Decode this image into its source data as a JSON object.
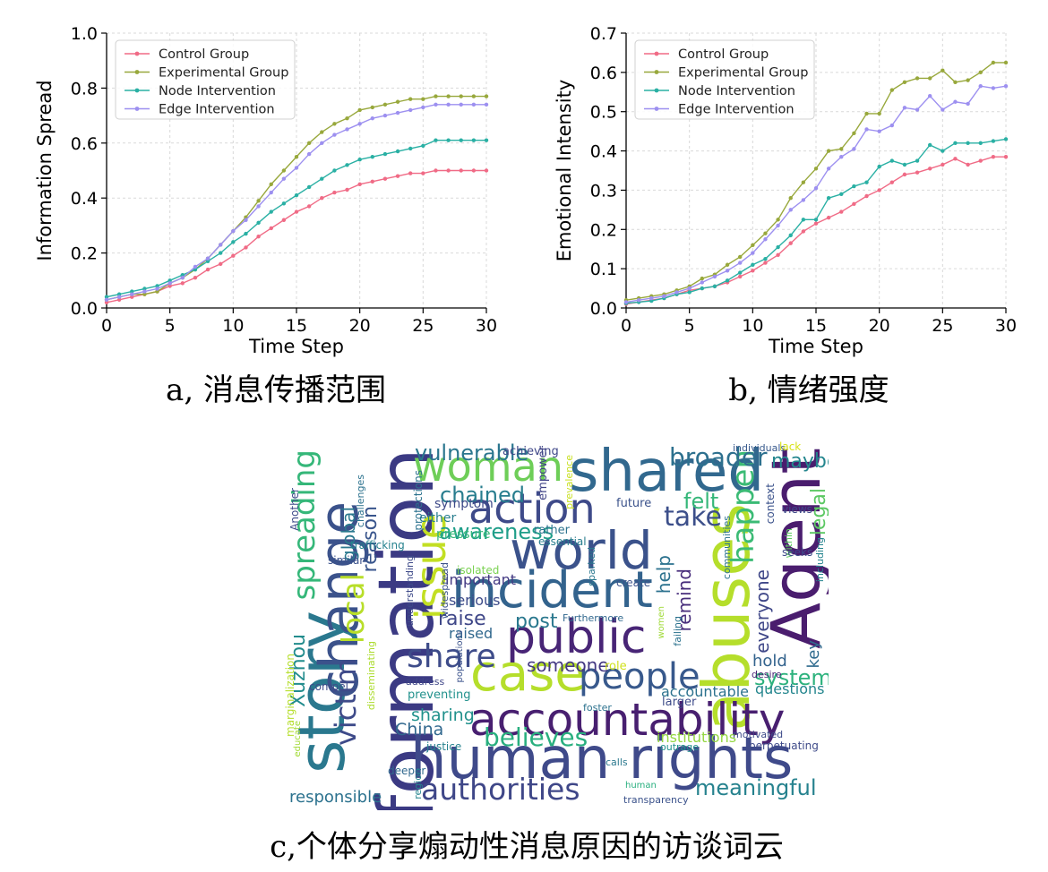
{
  "chart_data": [
    {
      "type": "line",
      "title": "",
      "xlabel": "Time Step",
      "ylabel": "Information Spread",
      "xlim": [
        0,
        30
      ],
      "ylim": [
        0.0,
        1.0
      ],
      "xticks": [
        "0",
        "5",
        "10",
        "15",
        "20",
        "25",
        "30"
      ],
      "yticks": [
        "0.0",
        "0.2",
        "0.4",
        "0.6",
        "0.8",
        "1.0"
      ],
      "grid": true,
      "legend_position": "top-left",
      "x": [
        0,
        1,
        2,
        3,
        4,
        5,
        6,
        7,
        8,
        9,
        10,
        11,
        12,
        13,
        14,
        15,
        16,
        17,
        18,
        19,
        20,
        21,
        22,
        23,
        24,
        25,
        26,
        27,
        28,
        29,
        30
      ],
      "series": [
        {
          "name": "Control Group",
          "color": "#f06b86",
          "values": [
            0.02,
            0.03,
            0.04,
            0.05,
            0.06,
            0.08,
            0.09,
            0.11,
            0.14,
            0.16,
            0.19,
            0.22,
            0.26,
            0.29,
            0.32,
            0.35,
            0.37,
            0.4,
            0.42,
            0.43,
            0.45,
            0.46,
            0.47,
            0.48,
            0.49,
            0.49,
            0.5,
            0.5,
            0.5,
            0.5,
            0.5
          ]
        },
        {
          "name": "Experimental Group",
          "color": "#98a83c",
          "values": [
            0.03,
            0.04,
            0.05,
            0.05,
            0.06,
            0.09,
            0.11,
            0.14,
            0.18,
            0.23,
            0.28,
            0.33,
            0.39,
            0.45,
            0.5,
            0.55,
            0.6,
            0.64,
            0.67,
            0.69,
            0.72,
            0.73,
            0.74,
            0.75,
            0.76,
            0.76,
            0.77,
            0.77,
            0.77,
            0.77,
            0.77
          ]
        },
        {
          "name": "Node Intervention",
          "color": "#2ab0a4",
          "values": [
            0.04,
            0.05,
            0.06,
            0.07,
            0.08,
            0.1,
            0.12,
            0.14,
            0.17,
            0.2,
            0.24,
            0.27,
            0.31,
            0.35,
            0.38,
            0.41,
            0.44,
            0.47,
            0.5,
            0.52,
            0.54,
            0.55,
            0.56,
            0.57,
            0.58,
            0.59,
            0.61,
            0.61,
            0.61,
            0.61,
            0.61
          ]
        },
        {
          "name": "Edge Intervention",
          "color": "#9d90f0",
          "values": [
            0.03,
            0.04,
            0.05,
            0.06,
            0.07,
            0.09,
            0.11,
            0.15,
            0.18,
            0.23,
            0.28,
            0.32,
            0.37,
            0.42,
            0.47,
            0.51,
            0.56,
            0.6,
            0.63,
            0.65,
            0.67,
            0.69,
            0.7,
            0.71,
            0.72,
            0.73,
            0.74,
            0.74,
            0.74,
            0.74,
            0.74
          ]
        }
      ]
    },
    {
      "type": "line",
      "title": "",
      "xlabel": "Time Step",
      "ylabel": "Emotional Intensity",
      "xlim": [
        0,
        30
      ],
      "ylim": [
        0.0,
        0.7
      ],
      "xticks": [
        "0",
        "5",
        "10",
        "15",
        "20",
        "25",
        "30"
      ],
      "yticks": [
        "0.0",
        "0.1",
        "0.2",
        "0.3",
        "0.4",
        "0.5",
        "0.6",
        "0.7"
      ],
      "grid": true,
      "legend_position": "top-left",
      "x": [
        0,
        1,
        2,
        3,
        4,
        5,
        6,
        7,
        8,
        9,
        10,
        11,
        12,
        13,
        14,
        15,
        16,
        17,
        18,
        19,
        20,
        21,
        22,
        23,
        24,
        25,
        26,
        27,
        28,
        29,
        30
      ],
      "series": [
        {
          "name": "Control Group",
          "color": "#f06b86",
          "values": [
            0.01,
            0.015,
            0.02,
            0.025,
            0.035,
            0.045,
            0.05,
            0.055,
            0.065,
            0.08,
            0.095,
            0.115,
            0.135,
            0.165,
            0.195,
            0.215,
            0.23,
            0.245,
            0.265,
            0.285,
            0.3,
            0.32,
            0.34,
            0.345,
            0.355,
            0.365,
            0.38,
            0.365,
            0.375,
            0.385,
            0.385
          ]
        },
        {
          "name": "Experimental Group",
          "color": "#98a83c",
          "values": [
            0.02,
            0.025,
            0.03,
            0.035,
            0.045,
            0.055,
            0.075,
            0.085,
            0.11,
            0.13,
            0.16,
            0.19,
            0.225,
            0.28,
            0.32,
            0.355,
            0.4,
            0.405,
            0.445,
            0.495,
            0.495,
            0.555,
            0.575,
            0.585,
            0.585,
            0.605,
            0.575,
            0.58,
            0.6,
            0.625,
            0.625
          ]
        },
        {
          "name": "Node Intervention",
          "color": "#2ab0a4",
          "values": [
            0.012,
            0.015,
            0.018,
            0.025,
            0.035,
            0.04,
            0.05,
            0.055,
            0.07,
            0.09,
            0.11,
            0.125,
            0.155,
            0.185,
            0.225,
            0.225,
            0.28,
            0.29,
            0.31,
            0.32,
            0.36,
            0.375,
            0.365,
            0.375,
            0.415,
            0.4,
            0.42,
            0.42,
            0.42,
            0.425,
            0.43
          ]
        },
        {
          "name": "Edge Intervention",
          "color": "#9d90f0",
          "values": [
            0.015,
            0.02,
            0.025,
            0.03,
            0.04,
            0.05,
            0.065,
            0.08,
            0.095,
            0.115,
            0.14,
            0.175,
            0.21,
            0.25,
            0.275,
            0.305,
            0.355,
            0.385,
            0.405,
            0.455,
            0.45,
            0.465,
            0.51,
            0.505,
            0.54,
            0.505,
            0.525,
            0.52,
            0.565,
            0.56,
            0.565
          ]
        }
      ]
    },
    {
      "type": "wordcloud",
      "words": [
        {
          "text": "information",
          "color": "#3b3a83"
        },
        {
          "text": "human rights",
          "color": "#3f4a8a"
        },
        {
          "text": "Agent",
          "color": "#4a1d6e"
        },
        {
          "text": "shared",
          "color": "#31688e"
        },
        {
          "text": "abuses",
          "color": "#b5de2b"
        },
        {
          "text": "incident",
          "color": "#33638d"
        },
        {
          "text": "world",
          "color": "#3b528b"
        },
        {
          "text": "accountability",
          "color": "#481f70"
        },
        {
          "text": "story",
          "color": "#2a788e"
        },
        {
          "text": "change",
          "color": "#3b528b"
        },
        {
          "text": "case",
          "color": "#b5de2b"
        },
        {
          "text": "public",
          "color": "#482576"
        },
        {
          "text": "woman",
          "color": "#6ece58"
        },
        {
          "text": "action",
          "color": "#3e4a89"
        },
        {
          "text": "issue",
          "color": "#c2df23"
        },
        {
          "text": "people",
          "color": "#38598c"
        },
        {
          "text": "spreading",
          "color": "#35b779"
        },
        {
          "text": "authorities",
          "color": "#3f4788"
        },
        {
          "text": "share",
          "color": "#3e4c8a"
        },
        {
          "text": "happen",
          "color": "#3bbb75"
        },
        {
          "text": "local",
          "color": "#b8de29"
        },
        {
          "text": "believes",
          "color": "#29af7f"
        },
        {
          "text": "victim",
          "color": "#3e4a89"
        },
        {
          "text": "take",
          "color": "#3c4f8a"
        },
        {
          "text": "broader",
          "color": "#2d708e"
        },
        {
          "text": "vulnerable",
          "color": "#2a768e"
        },
        {
          "text": "chained",
          "color": "#287d8e"
        },
        {
          "text": "awareness",
          "color": "#1f9e89"
        },
        {
          "text": "legal",
          "color": "#5cc863"
        },
        {
          "text": "maybe",
          "color": "#24868e"
        },
        {
          "text": "felt",
          "color": "#35b779"
        },
        {
          "text": "global",
          "color": "#2a788e"
        },
        {
          "text": "reason",
          "color": "#39558c"
        },
        {
          "text": "Xuzhou",
          "color": "#228c8d"
        },
        {
          "text": "systemic",
          "color": "#2db27d"
        },
        {
          "text": "meaningful",
          "color": "#26828e"
        },
        {
          "text": "raise",
          "color": "#3f4788"
        },
        {
          "text": "post",
          "color": "#2a788e"
        },
        {
          "text": "help",
          "color": "#2c728e"
        },
        {
          "text": "remind",
          "color": "#472d7b"
        },
        {
          "text": "everyone",
          "color": "#3f4788"
        },
        {
          "text": "key",
          "color": "#2f6b8e"
        },
        {
          "text": "someone",
          "color": "#443983"
        },
        {
          "text": "hold",
          "color": "#33638d"
        },
        {
          "text": "sharing",
          "color": "#21918c"
        },
        {
          "text": "China",
          "color": "#31688e"
        },
        {
          "text": "responsible",
          "color": "#2c728e"
        },
        {
          "text": "institutions",
          "color": "#93d741"
        },
        {
          "text": "accountable",
          "color": "#2c728e"
        },
        {
          "text": "questions",
          "color": "#24868e"
        },
        {
          "text": "serious",
          "color": "#3e4c8a"
        },
        {
          "text": "important",
          "color": "#443a83"
        },
        {
          "text": "raised",
          "color": "#31688e"
        },
        {
          "text": "either",
          "color": "#287d8e"
        },
        {
          "text": "symptom",
          "color": "#3e4a89"
        },
        {
          "text": "pressure",
          "color": "#35b779"
        },
        {
          "text": "isolated",
          "color": "#7ad151"
        },
        {
          "text": "achieving",
          "color": "#3f4788"
        },
        {
          "text": "empower",
          "color": "#414487"
        },
        {
          "text": "prevalence",
          "color": "#c8e020"
        },
        {
          "text": "rather",
          "color": "#2c728e"
        },
        {
          "text": "essential",
          "color": "#287d8e"
        },
        {
          "text": "future",
          "color": "#3b528b"
        },
        {
          "text": "communities",
          "color": "#2c728e"
        },
        {
          "text": "within",
          "color": "#5ec962"
        },
        {
          "text": "context",
          "color": "#3b528b"
        },
        {
          "text": "views",
          "color": "#3e4a89"
        },
        {
          "text": "individuals",
          "color": "#37598c"
        },
        {
          "text": "lack",
          "color": "#d8e219"
        },
        {
          "text": "seeks",
          "color": "#3e4989"
        },
        {
          "text": "including",
          "color": "#25848e"
        },
        {
          "text": "sparked",
          "color": "#2a788e"
        },
        {
          "text": "create",
          "color": "#3b528b"
        },
        {
          "text": "Furthermore",
          "color": "#31688e"
        },
        {
          "text": "women",
          "color": "#a0da39"
        },
        {
          "text": "failing",
          "color": "#2c728e"
        },
        {
          "text": "desire",
          "color": "#482475"
        },
        {
          "text": "role",
          "color": "#d0e11c"
        },
        {
          "text": "motivated",
          "color": "#3e4c8a"
        },
        {
          "text": "perpetuating",
          "color": "#3e4a89"
        },
        {
          "text": "outrage",
          "color": "#21918c"
        },
        {
          "text": "calls",
          "color": "#2a788e"
        },
        {
          "text": "human",
          "color": "#29af7f"
        },
        {
          "text": "transparency",
          "color": "#3b528b"
        },
        {
          "text": "foster",
          "color": "#2c728e"
        },
        {
          "text": "larger",
          "color": "#3e4c8a"
        },
        {
          "text": "preventing",
          "color": "#21918c"
        },
        {
          "text": "address",
          "color": "#3f4788"
        },
        {
          "text": "justice",
          "color": "#26828e"
        },
        {
          "text": "region",
          "color": "#25848e"
        },
        {
          "text": "populations",
          "color": "#3b528b"
        },
        {
          "text": "educate",
          "color": "#a2da37"
        },
        {
          "text": "deeper",
          "color": "#31688e"
        },
        {
          "text": "compel",
          "color": "#3e4c8a"
        },
        {
          "text": "disseminating",
          "color": "#addc30"
        },
        {
          "text": "marginalization",
          "color": "#b5de2b"
        },
        {
          "text": "Another",
          "color": "#3e4a89"
        },
        {
          "text": "challenges",
          "color": "#2c728e"
        },
        {
          "text": "trafficking",
          "color": "#26828e"
        },
        {
          "text": "similar",
          "color": "#3b528b"
        },
        {
          "text": "protections",
          "color": "#2c728e"
        },
        {
          "text": "understanding",
          "color": "#3e4a89"
        },
        {
          "text": "widespread",
          "color": "#3b528b"
        }
      ]
    }
  ],
  "captions": {
    "a": "a, 消息传播范围",
    "b": "b, 情绪强度",
    "c": "c,个体分享煽动性消息原因的访谈词云"
  }
}
